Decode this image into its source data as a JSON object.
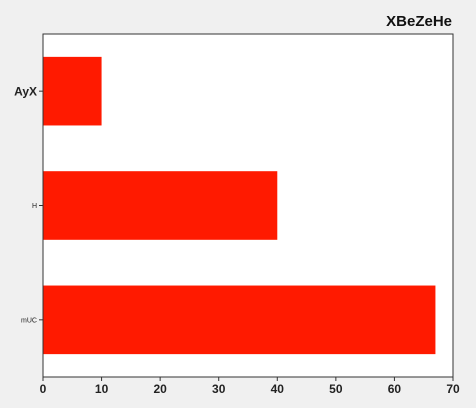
{
  "chart_data": {
    "type": "bar",
    "orientation": "horizontal",
    "title": "XBeZeHe",
    "categories": [
      "AyX",
      "H",
      "mUC"
    ],
    "values": [
      10,
      40,
      67
    ],
    "xlim": [
      0,
      70
    ],
    "x_ticks": [
      0,
      10,
      20,
      30,
      40,
      50,
      60,
      70
    ],
    "xlabel": "",
    "ylabel": "",
    "bar_color": "#ff1a00",
    "grid": false,
    "legend": "none"
  }
}
